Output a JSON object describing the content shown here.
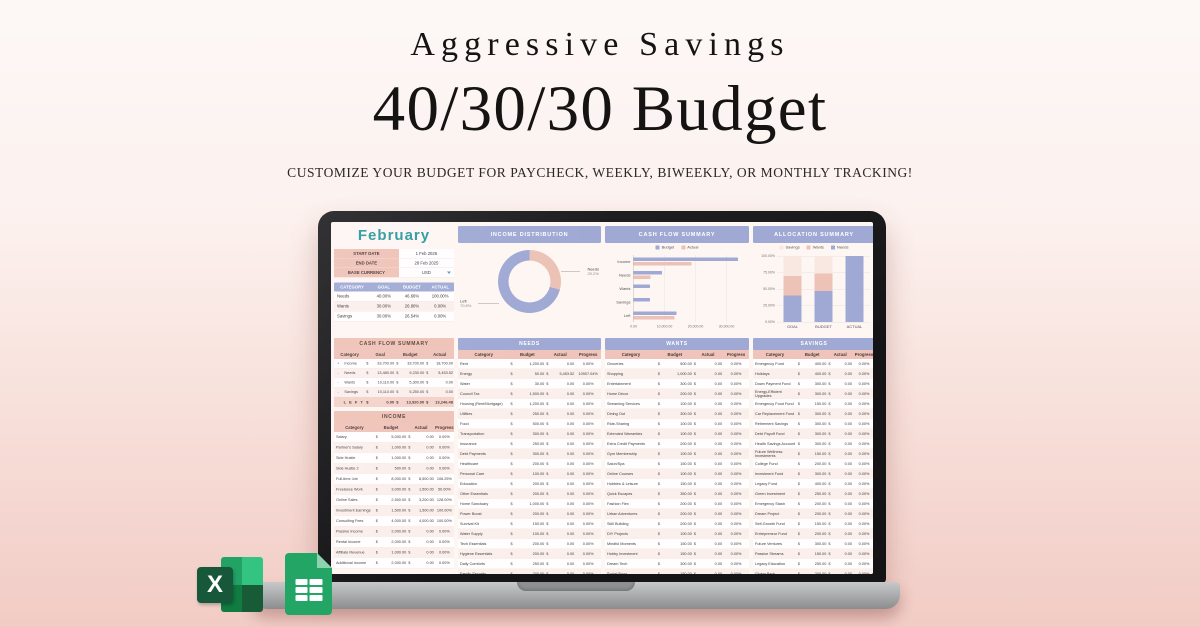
{
  "page": {
    "title_small": "Aggressive Savings",
    "title_large": "40/30/30 Budget",
    "subtitle": "CUSTOMIZE YOUR BUDGET FOR PAYCHECK, WEEKLY, BIWEEKLY, OR MONTHLY TRACKING!"
  },
  "colors": {
    "page_gradient_top": "#fdf8f6",
    "page_gradient_bottom": "#f1ccc5",
    "periwinkle_header": "#9fa9d4",
    "pink_header": "#f0c4ba",
    "pink_row": "#fbefec",
    "left_row_pink": "#f5d2ca",
    "teal_month": "#2d9aa0",
    "chart_pink": "#ecc2b6",
    "chart_periwinkle": "#9fa9d4",
    "chart_cream": "#f8e8e1",
    "excel_green": "#185c37",
    "sheets_green": "#23a566",
    "series": {
      "Budget": "#9fa9d4",
      "Actual": "#ecc2b6",
      "Savings": "#f8e8e1",
      "Wants": "#edc3b7",
      "Needs": "#9fa9d4"
    }
  },
  "sheet": {
    "month": "February",
    "cur": "$",
    "settings": {
      "start_date_label": "START DATE",
      "start_date_value": "1 Feb 2025",
      "end_date_label": "END DATE",
      "end_date_value": "28 Feb 2025",
      "currency_label": "BASE CURRENCY",
      "currency_value": "USD"
    },
    "alloc_table": {
      "headers": [
        "CATEGORY",
        "GOAL",
        "BUDGET",
        "ACTUAL"
      ],
      "rows": [
        {
          "c": "Needs",
          "g": "40.00%",
          "b": "46.66%",
          "a": "100.00%"
        },
        {
          "c": "Wants",
          "g": "30.00%",
          "b": "26.80%",
          "a": "0.00%"
        },
        {
          "c": "Savings",
          "g": "30.00%",
          "b": "26.54%",
          "a": "0.00%"
        }
      ]
    },
    "cf_headers": [
      "Category",
      "Goal",
      "Budget",
      "Actual"
    ],
    "col_headers": [
      "Category",
      "Budget",
      "Actual",
      "Progress"
    ],
    "cashflow_table": {
      "title": "CASH FLOW SUMMARY",
      "rows": [
        {
          "s": "+",
          "c": "Income",
          "g": "33,700.00",
          "b": "33,700.00",
          "a": "18,700.00"
        },
        {
          "s": "-",
          "c": "Needs",
          "g": "13,480.00",
          "b": "9,230.00",
          "a": "5,453.52"
        },
        {
          "s": "-",
          "c": "Wants",
          "g": "10,110.00",
          "b": "5,300.00",
          "a": "0.00"
        },
        {
          "s": "-",
          "c": "Savings",
          "g": "10,110.00",
          "b": "5,250.00",
          "a": "0.00"
        }
      ],
      "left_row": {
        "label": "L E F T",
        "g": "0.00",
        "b": "13,920.00",
        "a": "13,246.48"
      }
    },
    "income_table": {
      "title": "INCOME",
      "rows": [
        {
          "c": "Salary",
          "b": "5,000.00",
          "a": "0.00",
          "p": "0.00%"
        },
        {
          "c": "Partner's Salary",
          "b": "1,000.00",
          "a": "0.00",
          "p": "0.00%"
        },
        {
          "c": "Side Hustle",
          "b": "1,000.00",
          "a": "0.00",
          "p": "0.00%"
        },
        {
          "c": "Side Hustle 2",
          "b": "500.00",
          "a": "0.00",
          "p": "0.00%"
        },
        {
          "c": "Full-time Job",
          "b": "8,000.00",
          "a": "8,500.00",
          "p": "106.25%"
        },
        {
          "c": "Freelance Work",
          "b": "3,000.00",
          "a": "1,500.00",
          "p": "50.00%"
        },
        {
          "c": "Online Sales",
          "b": "2,500.00",
          "a": "3,200.00",
          "p": "128.00%"
        },
        {
          "c": "Investment Earnings",
          "b": "1,500.00",
          "a": "1,500.00",
          "p": "100.00%"
        },
        {
          "c": "Consulting Fees",
          "b": "4,000.00",
          "a": "4,000.00",
          "p": "100.00%"
        },
        {
          "c": "Passive Income",
          "b": "2,000.00",
          "a": "0.00",
          "p": "0.00%"
        },
        {
          "c": "Rental Income",
          "b": "2,000.00",
          "a": "0.00",
          "p": "0.00%"
        },
        {
          "c": "Affiliate Revenue",
          "b": "1,000.00",
          "a": "0.00",
          "p": "0.00%"
        },
        {
          "c": "Additional Income",
          "b": "2,000.00",
          "a": "0.00",
          "p": "0.00%"
        }
      ]
    },
    "needs_table": {
      "title": "NEEDS",
      "rows": [
        {
          "c": "Rent",
          "b": "1,200.00",
          "a": "0.00",
          "p": "0.00%"
        },
        {
          "c": "Energy",
          "b": "50.00",
          "a": "5,453.52",
          "p": "10907.04%"
        },
        {
          "c": "Water",
          "b": "30.00",
          "a": "0.00",
          "p": "0.00%"
        },
        {
          "c": "Council Tax",
          "b": "1,500.00",
          "a": "0.00",
          "p": "0.00%"
        },
        {
          "c": "Housing (Rent/Mortgage)",
          "b": "1,200.00",
          "a": "0.00",
          "p": "0.00%"
        },
        {
          "c": "Utilities",
          "b": "250.00",
          "a": "0.00",
          "p": "0.00%"
        },
        {
          "c": "Food",
          "b": "500.00",
          "a": "0.00",
          "p": "0.00%"
        },
        {
          "c": "Transportation",
          "b": "300.00",
          "a": "0.00",
          "p": "0.00%"
        },
        {
          "c": "Insurance",
          "b": "250.00",
          "a": "0.00",
          "p": "0.00%"
        },
        {
          "c": "Debt Payments",
          "b": "300.00",
          "a": "0.00",
          "p": "0.00%"
        },
        {
          "c": "Healthcare",
          "b": "200.00",
          "a": "0.00",
          "p": "0.00%"
        },
        {
          "c": "Personal Care",
          "b": "100.00",
          "a": "0.00",
          "p": "0.00%"
        },
        {
          "c": "Education",
          "b": "200.00",
          "a": "0.00",
          "p": "0.00%"
        },
        {
          "c": "Other Essentials",
          "b": "200.00",
          "a": "0.00",
          "p": "0.00%"
        },
        {
          "c": "Home Sanctuary",
          "b": "1,000.00",
          "a": "0.00",
          "p": "0.00%"
        },
        {
          "c": "Power Boost",
          "b": "200.00",
          "a": "0.00",
          "p": "0.00%"
        },
        {
          "c": "Survival Kit",
          "b": "150.00",
          "a": "0.00",
          "p": "0.00%"
        },
        {
          "c": "Water Supply",
          "b": "100.00",
          "a": "0.00",
          "p": "0.00%"
        },
        {
          "c": "Tech Essentials",
          "b": "200.00",
          "a": "0.00",
          "p": "0.00%"
        },
        {
          "c": "Hygiene Essentials",
          "b": "200.00",
          "a": "0.00",
          "p": "0.00%"
        },
        {
          "c": "Daily Comforts",
          "b": "250.00",
          "a": "0.00",
          "p": "0.00%"
        },
        {
          "c": "Family Security",
          "b": "200.00",
          "a": "0.00",
          "p": "0.00%"
        }
      ]
    },
    "wants_table": {
      "title": "WANTS",
      "rows": [
        {
          "c": "Groceries",
          "b": "500.00",
          "a": "0.00",
          "p": "0.00%"
        },
        {
          "c": "Shopping",
          "b": "1,000.00",
          "a": "0.00",
          "p": "0.00%"
        },
        {
          "c": "Entertainment",
          "b": "300.00",
          "a": "0.00",
          "p": "0.00%"
        },
        {
          "c": "Home Décor",
          "b": "200.00",
          "a": "0.00",
          "p": "0.00%"
        },
        {
          "c": "Streaming Services",
          "b": "100.00",
          "a": "0.00",
          "p": "0.00%"
        },
        {
          "c": "Dining Out",
          "b": "300.00",
          "a": "0.00",
          "p": "0.00%"
        },
        {
          "c": "Ride-Sharing",
          "b": "100.00",
          "a": "0.00",
          "p": "0.00%"
        },
        {
          "c": "Extended Warranties",
          "b": "100.00",
          "a": "0.00",
          "p": "0.00%"
        },
        {
          "c": "Extra Credit Payments",
          "b": "200.00",
          "a": "0.00",
          "p": "0.00%"
        },
        {
          "c": "Gym Membership",
          "b": "100.00",
          "a": "0.00",
          "p": "0.00%"
        },
        {
          "c": "Salon/Spa",
          "b": "150.00",
          "a": "0.00",
          "p": "0.00%"
        },
        {
          "c": "Online Courses",
          "b": "100.00",
          "a": "0.00",
          "p": "0.00%"
        },
        {
          "c": "Hobbies & Leisure",
          "b": "150.00",
          "a": "0.00",
          "p": "0.00%"
        },
        {
          "c": "Quick Escapes",
          "b": "350.00",
          "a": "0.00",
          "p": "0.00%"
        },
        {
          "c": "Fashion Flex",
          "b": "200.00",
          "a": "0.00",
          "p": "0.00%"
        },
        {
          "c": "Urban Adventures",
          "b": "200.00",
          "a": "0.00",
          "p": "0.00%"
        },
        {
          "c": "Skill Building",
          "b": "200.00",
          "a": "0.00",
          "p": "0.00%"
        },
        {
          "c": "DIY Projects",
          "b": "100.00",
          "a": "0.00",
          "p": "0.00%"
        },
        {
          "c": "Mindful Moments",
          "b": "150.00",
          "a": "0.00",
          "p": "0.00%"
        },
        {
          "c": "Hobby Investment",
          "b": "150.00",
          "a": "0.00",
          "p": "0.00%"
        },
        {
          "c": "Dream Tech",
          "b": "300.00",
          "a": "0.00",
          "p": "0.00%"
        },
        {
          "c": "Social Buzz",
          "b": "150.00",
          "a": "0.00",
          "p": "0.00%"
        }
      ]
    },
    "savings_table": {
      "title": "SAVINGS",
      "rows": [
        {
          "c": "Emergency Fund",
          "b": "400.00",
          "a": "0.00",
          "p": "0.00%"
        },
        {
          "c": "Holidays",
          "b": "400.00",
          "a": "0.00",
          "p": "0.00%"
        },
        {
          "c": "Down Payment Fund",
          "b": "300.00",
          "a": "0.00",
          "p": "0.00%"
        },
        {
          "c": "Energy-Efficient Upgrades",
          "b": "300.00",
          "a": "0.00",
          "p": "0.00%"
        },
        {
          "c": "Emergency Food Fund",
          "b": "150.00",
          "a": "0.00",
          "p": "0.00%"
        },
        {
          "c": "Car Replacement Fund",
          "b": "300.00",
          "a": "0.00",
          "p": "0.00%"
        },
        {
          "c": "Retirement Savings",
          "b": "300.00",
          "a": "0.00",
          "p": "0.00%"
        },
        {
          "c": "Debt Payoff Fund",
          "b": "300.00",
          "a": "0.00",
          "p": "0.00%"
        },
        {
          "c": "Health Savings Account",
          "b": "300.00",
          "a": "0.00",
          "p": "0.00%"
        },
        {
          "c": "Future Wellness Investments",
          "b": "150.00",
          "a": "0.00",
          "p": "0.00%"
        },
        {
          "c": "College Fund",
          "b": "200.00",
          "a": "0.00",
          "p": "0.00%"
        },
        {
          "c": "Investment Fund",
          "b": "300.00",
          "a": "0.00",
          "p": "0.00%"
        },
        {
          "c": "Legacy Fund",
          "b": "400.00",
          "a": "0.00",
          "p": "0.00%"
        },
        {
          "c": "Green Investment",
          "b": "250.00",
          "a": "0.00",
          "p": "0.00%"
        },
        {
          "c": "Emergency Stash",
          "b": "200.00",
          "a": "0.00",
          "p": "0.00%"
        },
        {
          "c": "Dream Project",
          "b": "200.00",
          "a": "0.00",
          "p": "0.00%"
        },
        {
          "c": "Self-Growth Fund",
          "b": "150.00",
          "a": "0.00",
          "p": "0.00%"
        },
        {
          "c": "Entrepreneur Fund",
          "b": "200.00",
          "a": "0.00",
          "p": "0.00%"
        },
        {
          "c": "Future Ventures",
          "b": "300.00",
          "a": "0.00",
          "p": "0.00%"
        },
        {
          "c": "Passive Streams",
          "b": "150.00",
          "a": "0.00",
          "p": "0.00%"
        },
        {
          "c": "Legacy Education",
          "b": "250.00",
          "a": "0.00",
          "p": "0.00%"
        },
        {
          "c": "Giving Back",
          "b": "200.00",
          "a": "0.00",
          "p": "0.00%"
        }
      ]
    }
  },
  "chart_data": [
    {
      "type": "pie",
      "subtype": "donut",
      "title": "INCOME DISTRIBUTION",
      "slices": [
        {
          "label": "Needs",
          "value": 29.2,
          "pct": "29.2%"
        },
        {
          "label": "Left",
          "value": 70.8,
          "pct": "70.8%"
        }
      ],
      "legend_position": "none"
    },
    {
      "type": "bar",
      "orientation": "horizontal",
      "title": "CASH FLOW SUMMARY",
      "categories": [
        "Income",
        "Needs",
        "Wants",
        "Savings",
        "Left"
      ],
      "series": [
        {
          "name": "Budget",
          "values": [
            33700,
            9230,
            5300,
            5250,
            13920
          ]
        },
        {
          "name": "Actual",
          "values": [
            18700,
            5453.52,
            0,
            0,
            13246.48
          ]
        }
      ],
      "xlim": [
        0,
        35000
      ],
      "x_ticks": [
        {
          "label": "0.00",
          "value": 0
        },
        {
          "label": "10,000.00",
          "value": 10000
        },
        {
          "label": "20,000.00",
          "value": 20000
        },
        {
          "label": "30,000.00",
          "value": 30000
        }
      ],
      "legend_position": "top",
      "grid": true
    },
    {
      "type": "bar",
      "stacked": true,
      "title": "ALLOCATION SUMMARY",
      "categories": [
        "GOAL",
        "BUDGET",
        "ACTUAL"
      ],
      "series": [
        {
          "name": "Savings",
          "values": [
            30,
            26.54,
            0
          ]
        },
        {
          "name": "Wants",
          "values": [
            30,
            26.8,
            0
          ]
        },
        {
          "name": "Needs",
          "values": [
            40,
            46.66,
            100
          ]
        }
      ],
      "ylim": [
        0,
        100
      ],
      "y_ticks": [
        "100.00%",
        "75.00%",
        "50.00%",
        "25.00%",
        "0.00%"
      ],
      "legend_position": "top",
      "grid": true
    }
  ]
}
